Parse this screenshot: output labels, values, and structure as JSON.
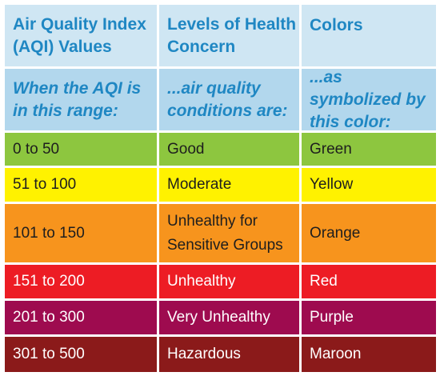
{
  "header": {
    "col1": "Air Quality Index (AQI) Values",
    "col2": "Levels of Health Concern",
    "col3": "Colors"
  },
  "subheader": {
    "col1": "When the AQI is in this range:",
    "col2": "...air quality conditions are:",
    "col3": "...as symbolized by this color:"
  },
  "rows": [
    {
      "range": "0 to 50",
      "level": "Good",
      "color": "Green",
      "bg": "#8dc63f",
      "text": "#1e1e1e"
    },
    {
      "range": "51 to 100",
      "level": "Moderate",
      "color": "Yellow",
      "bg": "#fff200",
      "text": "#1e1e1e"
    },
    {
      "range": "101 to 150",
      "level": "Unhealthy for Sensitive Groups",
      "color": "Orange",
      "bg": "#f7941d",
      "text": "#1e1e1e"
    },
    {
      "range": "151 to 200",
      "level": "Unhealthy",
      "color": "Red",
      "bg": "#ed1c24",
      "text": "#ffffff"
    },
    {
      "range": "201 to 300",
      "level": "Very Unhealthy",
      "color": "Purple",
      "bg": "#9e0b4f",
      "text": "#ffffff"
    },
    {
      "range": "301 to 500",
      "level": "Hazardous",
      "color": "Maroon",
      "bg": "#8b1a1a",
      "text": "#ffffff"
    }
  ]
}
